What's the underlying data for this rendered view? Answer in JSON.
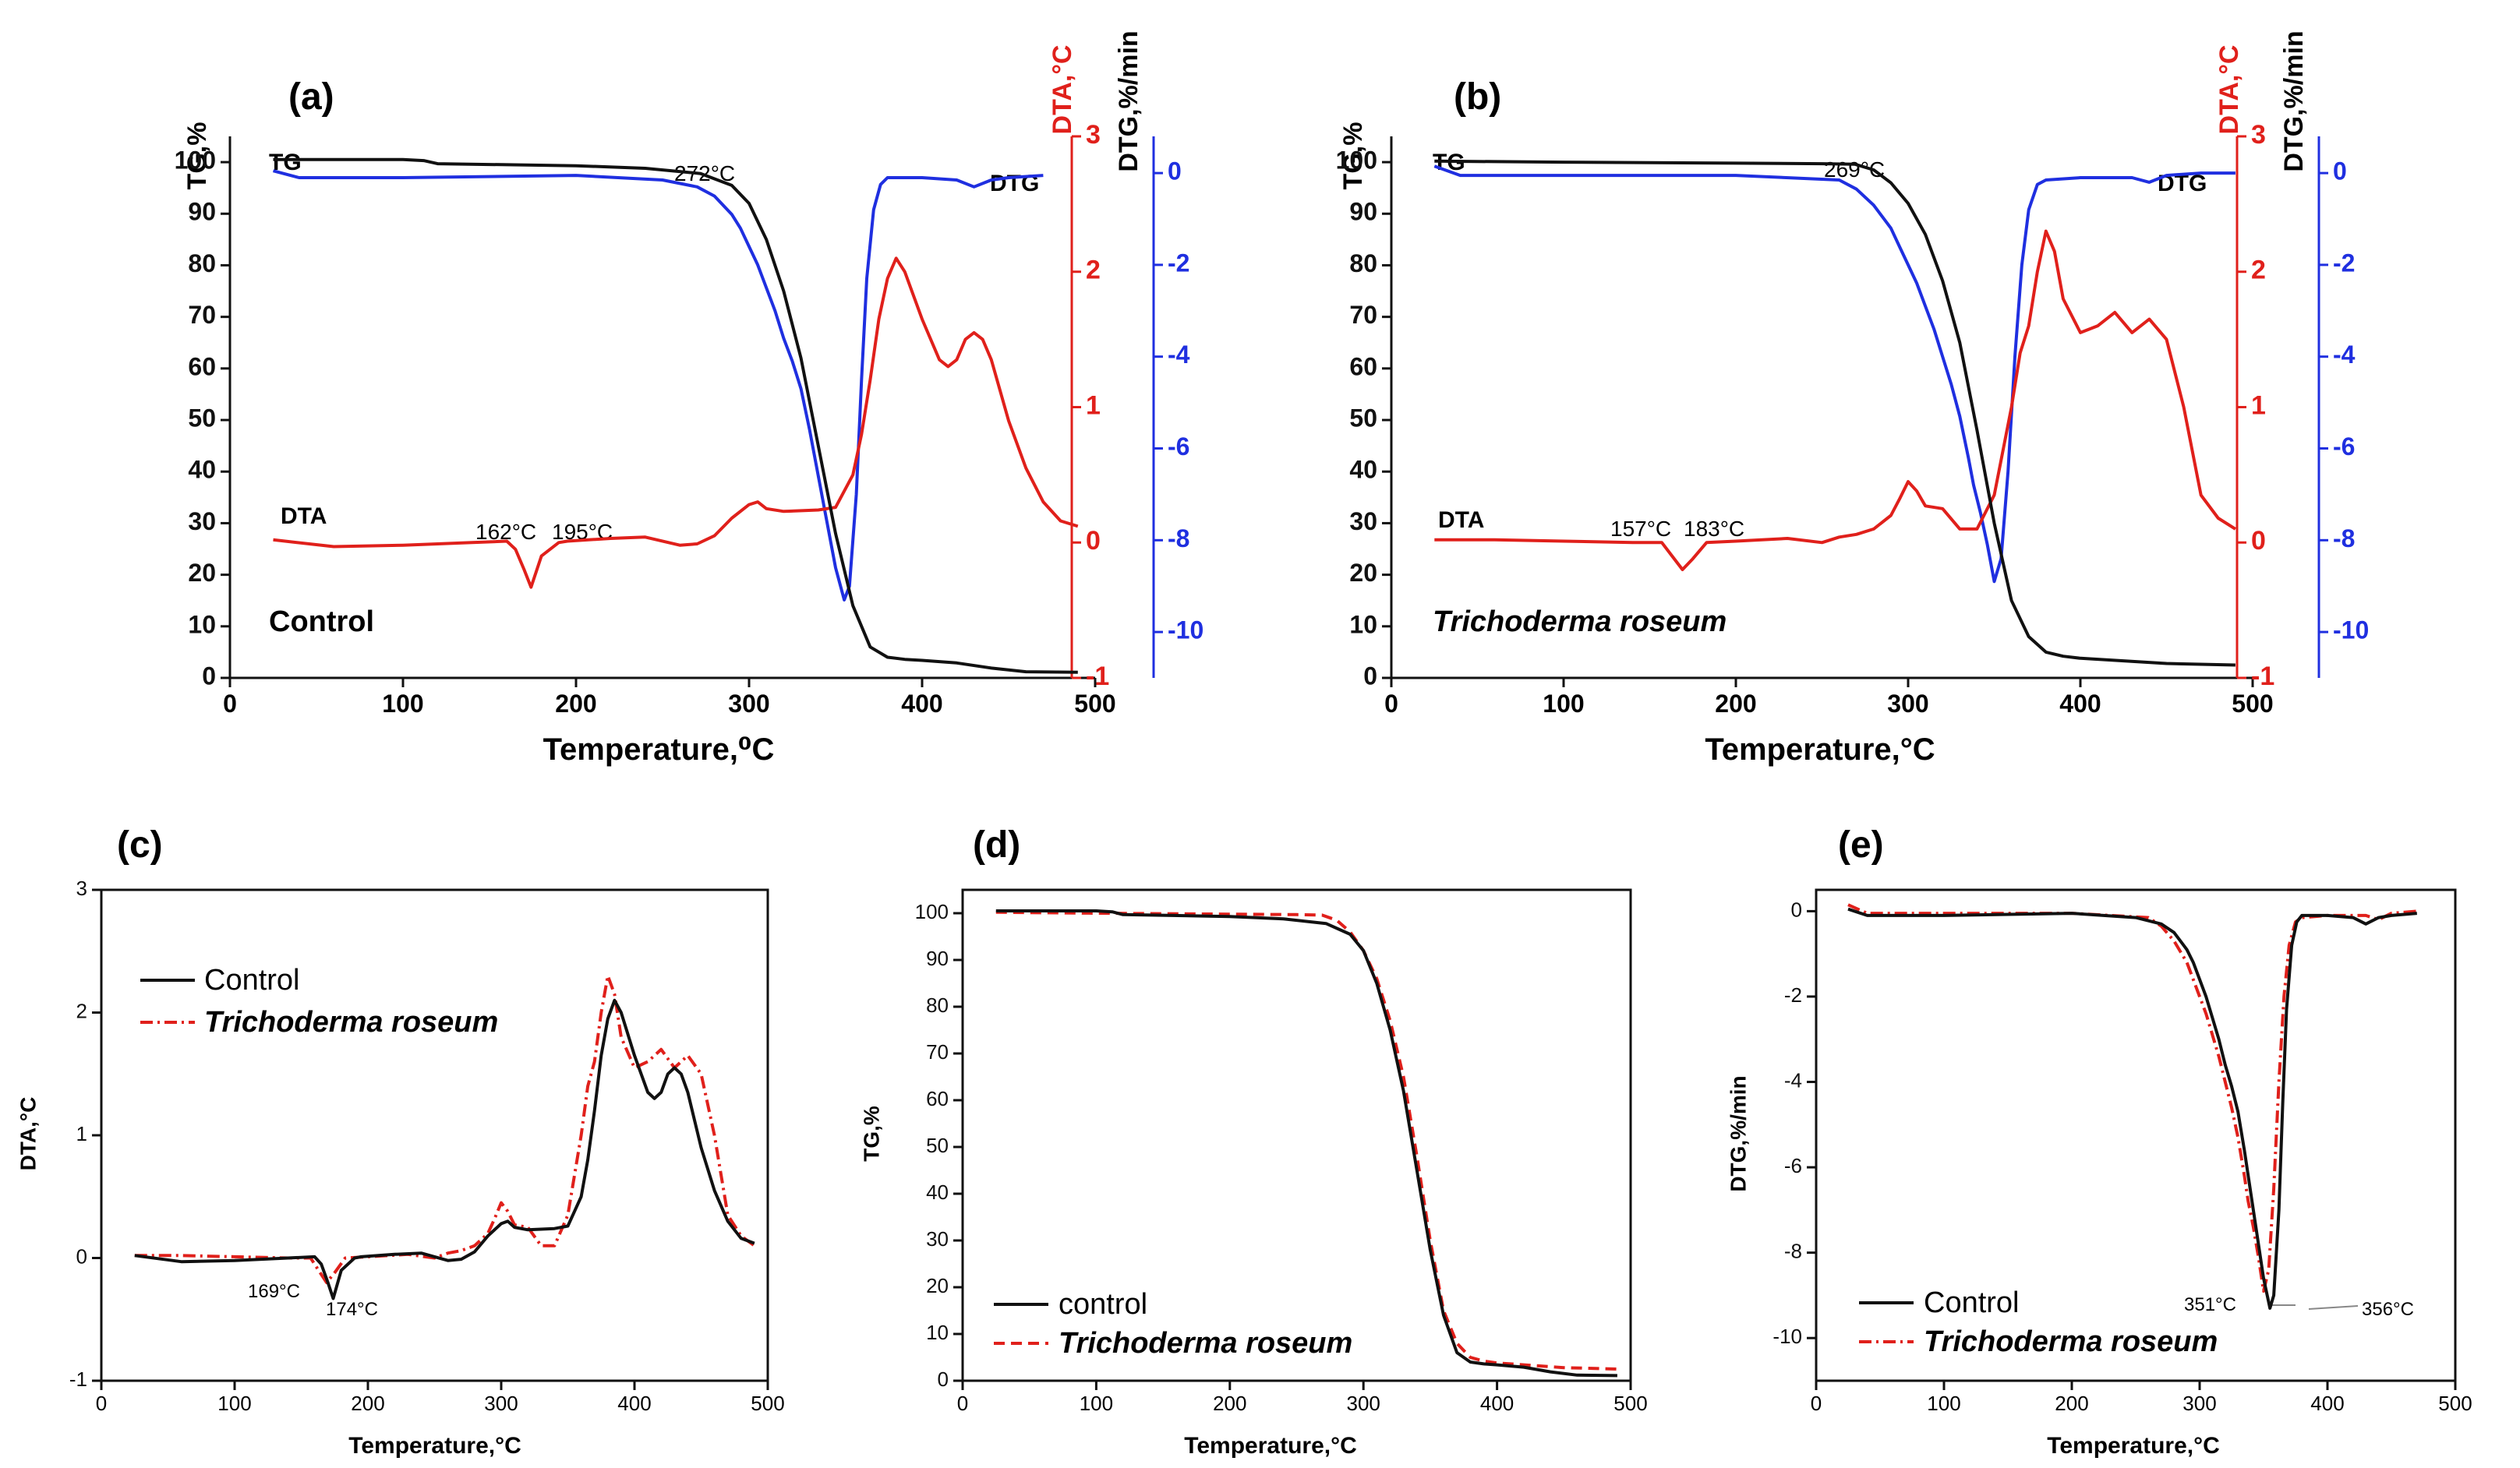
{
  "colors": {
    "black": "#111111",
    "red": "#e0201b",
    "blue": "#1f2fe0"
  },
  "chart_data": [
    {
      "id": "a",
      "type": "line",
      "panel_label": "(a)",
      "xlabel": "Temperature,⁰C",
      "y1label": "TG,%",
      "y2label": "DTA,°C",
      "y3label": "DTG,%/min",
      "xlim": [
        0,
        500
      ],
      "y1lim": [
        0,
        105
      ],
      "y2lim": [
        -1,
        3
      ],
      "y3lim": [
        -11,
        0.8
      ],
      "xticks": [
        0,
        100,
        200,
        300,
        400,
        500
      ],
      "y1ticks": [
        0,
        10,
        20,
        30,
        40,
        50,
        60,
        70,
        80,
        90,
        100
      ],
      "y2ticks": [
        -1,
        0,
        1,
        2,
        3
      ],
      "y3ticks": [
        -10,
        -8,
        -6,
        -4,
        -2,
        0
      ],
      "series_labels": {
        "tg": "TG",
        "dta": "DTA",
        "dtg": "DTG"
      },
      "sample_label": "Control",
      "annotations": [
        "272°C",
        "162°C",
        "195°C"
      ],
      "series": [
        {
          "name": "TG",
          "axis": "y1",
          "color": "black",
          "x": [
            25,
            100,
            112,
            120,
            200,
            240,
            272,
            290,
            300,
            310,
            320,
            330,
            340,
            350,
            360,
            370,
            380,
            390,
            400,
            420,
            440,
            460,
            490
          ],
          "y": [
            100.5,
            100.5,
            100.3,
            99.7,
            99.3,
            98.8,
            97.8,
            95.5,
            92,
            85,
            75,
            62,
            45,
            28,
            14,
            6,
            4,
            3.6,
            3.4,
            2.9,
            1.9,
            1.2,
            1.1
          ]
        },
        {
          "name": "DTA",
          "axis": "y2",
          "color": "red",
          "x": [
            25,
            60,
            100,
            140,
            160,
            165,
            170,
            174,
            180,
            190,
            195,
            220,
            240,
            260,
            270,
            280,
            290,
            300,
            305,
            310,
            320,
            340,
            350,
            360,
            365,
            370,
            375,
            380,
            385,
            390,
            400,
            410,
            415,
            420,
            425,
            430,
            435,
            440,
            450,
            460,
            470,
            480,
            490
          ],
          "y": [
            0.02,
            -0.03,
            -0.02,
            0.0,
            0.01,
            -0.05,
            -0.2,
            -0.33,
            -0.1,
            0.0,
            0.01,
            0.03,
            0.04,
            -0.02,
            -0.01,
            0.05,
            0.18,
            0.28,
            0.3,
            0.25,
            0.23,
            0.24,
            0.26,
            0.5,
            0.8,
            1.2,
            1.65,
            1.95,
            2.1,
            2.0,
            1.65,
            1.35,
            1.3,
            1.35,
            1.5,
            1.55,
            1.5,
            1.35,
            0.9,
            0.55,
            0.3,
            0.16,
            0.12
          ]
        },
        {
          "name": "DTG",
          "axis": "y3",
          "color": "blue",
          "x": [
            25,
            40,
            100,
            200,
            250,
            270,
            280,
            290,
            295,
            300,
            305,
            310,
            315,
            320,
            325,
            330,
            335,
            340,
            345,
            350,
            355,
            358,
            362,
            365,
            368,
            372,
            376,
            380,
            400,
            420,
            430,
            440,
            450,
            470
          ],
          "y": [
            0.05,
            -0.1,
            -0.1,
            -0.05,
            -0.15,
            -0.3,
            -0.5,
            -0.9,
            -1.2,
            -1.6,
            -2.0,
            -2.5,
            -3.0,
            -3.6,
            -4.1,
            -4.7,
            -5.6,
            -6.6,
            -7.6,
            -8.6,
            -9.3,
            -9.0,
            -7.0,
            -4.5,
            -2.3,
            -0.8,
            -0.25,
            -0.1,
            -0.1,
            -0.15,
            -0.3,
            -0.15,
            -0.1,
            -0.05
          ]
        }
      ]
    },
    {
      "id": "b",
      "type": "line",
      "panel_label": "(b)",
      "xlabel": "Temperature,°C",
      "y1label": "TG,%",
      "y2label": "DTA,°C",
      "y3label": "DTG,%/min",
      "xlim": [
        0,
        500
      ],
      "y1lim": [
        0,
        105
      ],
      "y2lim": [
        -1,
        3
      ],
      "y3lim": [
        -11,
        0.8
      ],
      "xticks": [
        0,
        100,
        200,
        300,
        400,
        500
      ],
      "y1ticks": [
        0,
        10,
        20,
        30,
        40,
        50,
        60,
        70,
        80,
        90,
        100
      ],
      "y2ticks": [
        -1,
        0,
        1,
        2,
        3
      ],
      "y3ticks": [
        -10,
        -8,
        -6,
        -4,
        -2,
        0
      ],
      "series_labels": {
        "tg": "TG",
        "dta": "DTA",
        "dtg": "DTG"
      },
      "sample_label": "Trichoderma roseum",
      "annotations": [
        "269°C",
        "157°C",
        "183°C"
      ],
      "series": [
        {
          "name": "TG",
          "axis": "y1",
          "color": "black",
          "x": [
            25,
            100,
            200,
            250,
            269,
            280,
            290,
            300,
            310,
            320,
            330,
            340,
            350,
            360,
            370,
            380,
            390,
            400,
            450,
            490
          ],
          "y": [
            100.2,
            100,
            99.8,
            99.7,
            99.6,
            98.5,
            96,
            92,
            86,
            77,
            65,
            48,
            30,
            15,
            8,
            5,
            4.2,
            3.8,
            2.8,
            2.5
          ]
        },
        {
          "name": "DTA",
          "axis": "y2",
          "color": "red",
          "x": [
            25,
            60,
            100,
            140,
            157,
            163,
            169,
            175,
            183,
            200,
            230,
            250,
            260,
            270,
            280,
            290,
            295,
            300,
            305,
            310,
            320,
            330,
            340,
            350,
            360,
            365,
            370,
            375,
            380,
            385,
            390,
            400,
            410,
            420,
            430,
            440,
            450,
            460,
            470,
            480,
            490
          ],
          "y": [
            0.02,
            0.02,
            0.01,
            0.0,
            0.0,
            -0.1,
            -0.2,
            -0.12,
            0.0,
            0.01,
            0.03,
            0.0,
            0.04,
            0.06,
            0.1,
            0.2,
            0.32,
            0.45,
            0.38,
            0.27,
            0.25,
            0.1,
            0.1,
            0.35,
            1.0,
            1.4,
            1.6,
            2.0,
            2.3,
            2.15,
            1.8,
            1.55,
            1.6,
            1.7,
            1.55,
            1.65,
            1.5,
            1.0,
            0.35,
            0.18,
            0.1
          ]
        },
        {
          "name": "DTG",
          "axis": "y3",
          "color": "blue",
          "x": [
            25,
            40,
            100,
            200,
            260,
            270,
            280,
            290,
            295,
            300,
            305,
            310,
            315,
            320,
            325,
            330,
            335,
            338,
            342,
            346,
            350,
            354,
            358,
            362,
            366,
            370,
            375,
            380,
            400,
            430,
            440,
            450,
            470,
            490
          ],
          "y": [
            0.15,
            -0.05,
            -0.05,
            -0.05,
            -0.15,
            -0.35,
            -0.7,
            -1.2,
            -1.6,
            -2.0,
            -2.4,
            -2.9,
            -3.4,
            -4.0,
            -4.6,
            -5.3,
            -6.2,
            -6.8,
            -7.4,
            -8.1,
            -8.9,
            -8.4,
            -6.5,
            -4.0,
            -2.0,
            -0.8,
            -0.25,
            -0.15,
            -0.1,
            -0.1,
            -0.2,
            -0.05,
            0.0,
            0.0
          ]
        }
      ]
    },
    {
      "id": "c",
      "type": "line",
      "panel_label": "(c)",
      "xlabel": "Temperature,°C",
      "ylabel": "DTA,°C",
      "xlim": [
        0,
        500
      ],
      "ylim": [
        -1,
        3
      ],
      "xticks": [
        0,
        100,
        200,
        300,
        400,
        500
      ],
      "yticks": [
        -1,
        0,
        1,
        2,
        3
      ],
      "annotations": [
        "169°C",
        "174°C"
      ],
      "series": [
        {
          "name": "Control",
          "style": "solid",
          "color": "black",
          "x": [
            25,
            60,
            100,
            140,
            160,
            165,
            170,
            174,
            180,
            190,
            195,
            220,
            240,
            260,
            270,
            280,
            290,
            300,
            305,
            310,
            320,
            340,
            350,
            360,
            365,
            370,
            375,
            380,
            385,
            390,
            400,
            410,
            415,
            420,
            425,
            430,
            435,
            440,
            450,
            460,
            470,
            480,
            490
          ],
          "y": [
            0.02,
            -0.03,
            -0.02,
            0.0,
            0.01,
            -0.05,
            -0.2,
            -0.33,
            -0.1,
            0.0,
            0.01,
            0.03,
            0.04,
            -0.02,
            -0.01,
            0.05,
            0.18,
            0.28,
            0.3,
            0.25,
            0.23,
            0.24,
            0.26,
            0.5,
            0.8,
            1.2,
            1.65,
            1.95,
            2.1,
            2.0,
            1.65,
            1.35,
            1.3,
            1.35,
            1.5,
            1.55,
            1.5,
            1.35,
            0.9,
            0.55,
            0.3,
            0.16,
            0.12
          ]
        },
        {
          "name": "Trichoderma roseum",
          "style": "dashdot",
          "color": "red",
          "x": [
            25,
            60,
            100,
            140,
            157,
            163,
            169,
            175,
            183,
            200,
            230,
            250,
            260,
            270,
            280,
            290,
            295,
            300,
            305,
            310,
            320,
            330,
            340,
            350,
            360,
            365,
            370,
            375,
            380,
            385,
            390,
            400,
            410,
            420,
            430,
            440,
            450,
            460,
            470,
            480,
            490
          ],
          "y": [
            0.02,
            0.02,
            0.01,
            0.0,
            0.0,
            -0.1,
            -0.2,
            -0.12,
            0.0,
            0.01,
            0.03,
            0.0,
            0.04,
            0.06,
            0.1,
            0.2,
            0.32,
            0.45,
            0.38,
            0.27,
            0.25,
            0.1,
            0.1,
            0.35,
            1.0,
            1.4,
            1.6,
            2.0,
            2.3,
            2.15,
            1.8,
            1.55,
            1.6,
            1.7,
            1.55,
            1.65,
            1.5,
            1.0,
            0.35,
            0.18,
            0.1
          ]
        }
      ]
    },
    {
      "id": "d",
      "type": "line",
      "panel_label": "(d)",
      "xlabel": "Temperature,°C",
      "ylabel": "TG,%",
      "xlim": [
        0,
        500
      ],
      "ylim": [
        0,
        105
      ],
      "xticks": [
        0,
        100,
        200,
        300,
        400,
        500
      ],
      "yticks": [
        0,
        10,
        20,
        30,
        40,
        50,
        60,
        70,
        80,
        90,
        100
      ],
      "series": [
        {
          "name": "control",
          "style": "solid",
          "color": "black",
          "x": [
            25,
            100,
            112,
            120,
            200,
            240,
            272,
            290,
            300,
            310,
            320,
            330,
            340,
            350,
            360,
            370,
            380,
            390,
            400,
            420,
            440,
            460,
            490
          ],
          "y": [
            100.5,
            100.5,
            100.3,
            99.7,
            99.3,
            98.8,
            97.8,
            95.5,
            92,
            85,
            75,
            62,
            45,
            28,
            14,
            6,
            4,
            3.6,
            3.4,
            2.9,
            1.9,
            1.2,
            1.1
          ]
        },
        {
          "name": "Trichoderma roseum",
          "style": "dashed",
          "color": "red",
          "x": [
            25,
            100,
            200,
            250,
            269,
            280,
            290,
            300,
            310,
            320,
            330,
            340,
            350,
            360,
            370,
            380,
            390,
            400,
            450,
            490
          ],
          "y": [
            100.2,
            100,
            99.8,
            99.7,
            99.6,
            98.5,
            96,
            92,
            86,
            77,
            65,
            48,
            30,
            15,
            8,
            5,
            4.2,
            3.8,
            2.8,
            2.5
          ]
        }
      ]
    },
    {
      "id": "e",
      "type": "line",
      "panel_label": "(e)",
      "xlabel": "Temperature,°C",
      "ylabel": "DTG,%/min",
      "xlim": [
        0,
        500
      ],
      "ylim": [
        -11,
        0.5
      ],
      "xticks": [
        0,
        100,
        200,
        300,
        400,
        500
      ],
      "yticks": [
        -10,
        -8,
        -6,
        -4,
        -2,
        0
      ],
      "annotations": [
        "351°C",
        "356°C"
      ],
      "series": [
        {
          "name": "Control",
          "style": "solid",
          "color": "black",
          "x": [
            25,
            40,
            100,
            200,
            250,
            270,
            280,
            290,
            295,
            300,
            305,
            310,
            315,
            320,
            325,
            330,
            335,
            340,
            345,
            350,
            355,
            358,
            362,
            365,
            368,
            372,
            376,
            380,
            400,
            420,
            430,
            440,
            450,
            470
          ],
          "y": [
            0.05,
            -0.1,
            -0.1,
            -0.05,
            -0.15,
            -0.3,
            -0.5,
            -0.9,
            -1.2,
            -1.6,
            -2.0,
            -2.5,
            -3.0,
            -3.6,
            -4.1,
            -4.7,
            -5.6,
            -6.6,
            -7.6,
            -8.6,
            -9.3,
            -9.0,
            -7.0,
            -4.5,
            -2.3,
            -0.8,
            -0.25,
            -0.1,
            -0.1,
            -0.15,
            -0.3,
            -0.15,
            -0.1,
            -0.05
          ]
        },
        {
          "name": "Trichoderma roseum",
          "style": "dashdot",
          "color": "red",
          "x": [
            25,
            40,
            100,
            200,
            260,
            270,
            280,
            290,
            295,
            300,
            305,
            310,
            315,
            320,
            325,
            330,
            335,
            338,
            342,
            346,
            350,
            354,
            358,
            362,
            366,
            370,
            375,
            380,
            400,
            430,
            440,
            450,
            470
          ],
          "y": [
            0.15,
            -0.05,
            -0.05,
            -0.05,
            -0.15,
            -0.35,
            -0.7,
            -1.2,
            -1.6,
            -2.0,
            -2.4,
            -2.9,
            -3.4,
            -4.0,
            -4.6,
            -5.3,
            -6.2,
            -6.8,
            -7.4,
            -8.1,
            -8.9,
            -8.4,
            -6.5,
            -4.0,
            -2.0,
            -0.8,
            -0.25,
            -0.15,
            -0.1,
            -0.1,
            -0.2,
            -0.05,
            0.0
          ]
        }
      ]
    }
  ]
}
